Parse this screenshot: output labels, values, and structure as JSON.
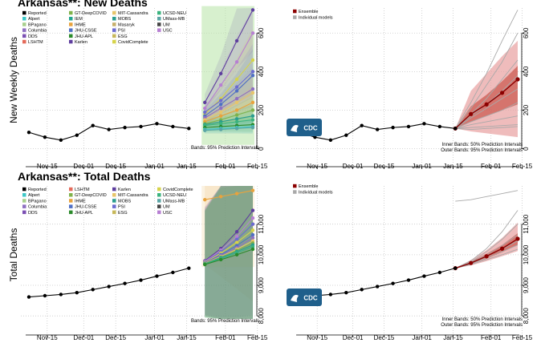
{
  "colors": {
    "reported": "#000000",
    "ensemble": "#8b0000",
    "ensemble_band_inner": "#c0392b",
    "ensemble_band_outer": "#e8a0a0",
    "individual": "#a9a9a9",
    "forecast_bg_left_top": "#b6e3a6",
    "forecast_bg_left_bottom": "#f7e7c9",
    "cdc_logo": "#1f5f8b"
  },
  "x_ticks": [
    "Nov-15",
    "Dec-01",
    "Dec-15",
    "Jan-01",
    "Jan-15",
    "Feb-01",
    "Feb-15"
  ],
  "model_legend": [
    {
      "name": "Reported",
      "color": "#000000"
    },
    {
      "name": "Alpert",
      "color": "#3ec7c7"
    },
    {
      "name": "BPagano",
      "color": "#a8d08d"
    },
    {
      "name": "Columbia",
      "color": "#8e6fc2"
    },
    {
      "name": "DDS",
      "color": "#7b4fb3"
    },
    {
      "name": "LSHTM",
      "color": "#e46a5a"
    },
    {
      "name": "GT-DeepCOVID",
      "color": "#7fb24a"
    },
    {
      "name": "IEM",
      "color": "#20a48e"
    },
    {
      "name": "IHME",
      "color": "#e8a33d"
    },
    {
      "name": "JHU-CSSE",
      "color": "#4f6fc4"
    },
    {
      "name": "JHU-APL",
      "color": "#2a8a2a"
    },
    {
      "name": "Karlen",
      "color": "#5e3e9e"
    },
    {
      "name": "MIT-Cassandra",
      "color": "#e7c56a"
    },
    {
      "name": "MOBS",
      "color": "#2a9d8f"
    },
    {
      "name": "Masaryk",
      "color": "#c6b06a"
    },
    {
      "name": "PSI",
      "color": "#6b6bd1"
    },
    {
      "name": "ESG",
      "color": "#c7b85a"
    },
    {
      "name": "CovidComplete",
      "color": "#d6d34a"
    },
    {
      "name": "UCSD-NEU",
      "color": "#3ab37e"
    },
    {
      "name": "UMass-MB",
      "color": "#5aa5a5"
    },
    {
      "name": "UM",
      "color": "#444444"
    },
    {
      "name": "USC",
      "color": "#b77fd3"
    }
  ],
  "model_legend_bottom": [
    {
      "name": "Reported",
      "color": "#000000"
    },
    {
      "name": "Alpert",
      "color": "#3ec7c7"
    },
    {
      "name": "BPagano",
      "color": "#a8d08d"
    },
    {
      "name": "Columbia",
      "color": "#8e6fc2"
    },
    {
      "name": "DDS",
      "color": "#7b4fb3"
    },
    {
      "name": "LSHTM",
      "color": "#e46a5a"
    },
    {
      "name": "GT-DeepCOVID",
      "color": "#7fb24a"
    },
    {
      "name": "IHME",
      "color": "#e8a33d"
    },
    {
      "name": "JHU-CSSE",
      "color": "#4f6fc4"
    },
    {
      "name": "JHU-APL",
      "color": "#2a8a2a"
    },
    {
      "name": "Karlen",
      "color": "#5e3e9e"
    },
    {
      "name": "MIT-Cassandra",
      "color": "#e7c56a"
    },
    {
      "name": "MOBS",
      "color": "#2a9d8f"
    },
    {
      "name": "PSI",
      "color": "#6b6bd1"
    },
    {
      "name": "ESG",
      "color": "#c7b85a"
    },
    {
      "name": "CovidComplete",
      "color": "#d6d34a"
    },
    {
      "name": "UCSD-NEU",
      "color": "#3ab37e"
    },
    {
      "name": "UMass-MB",
      "color": "#5aa5a5"
    },
    {
      "name": "UM",
      "color": "#444444"
    },
    {
      "name": "USC",
      "color": "#b77fd3"
    }
  ],
  "ensemble_legend": [
    {
      "name": "Ensemble",
      "color": "#8b0000"
    },
    {
      "name": "Individual models",
      "color": "#a9a9a9"
    }
  ],
  "notes": {
    "bands_left": "Bands: 95% Prediction Intervals",
    "inner_bands": "Inner Bands: 50% Prediction Intervals",
    "outer_bands": "Outer Bands: 95% Prediction Intervals",
    "cdc_label": "CDC"
  },
  "chart_data": [
    {
      "id": "new-deaths-models",
      "type": "line",
      "title": "Arkansas**: New Deaths",
      "ylabel": "New Weekly Deaths",
      "ylim": [
        -10,
        730
      ],
      "yticks": [
        0,
        200,
        400,
        600
      ],
      "x_reported": [
        "Nov-07",
        "Nov-14",
        "Nov-21",
        "Nov-28",
        "Dec-05",
        "Dec-12",
        "Dec-19",
        "Dec-26",
        "Jan-02",
        "Jan-09",
        "Jan-16"
      ],
      "reported": [
        85,
        60,
        45,
        70,
        120,
        100,
        110,
        115,
        130,
        115,
        105
      ],
      "x_forecast": [
        "Jan-23",
        "Jan-30",
        "Feb-06",
        "Feb-13"
      ],
      "series": [
        {
          "name": "Karlen",
          "values": [
            240,
            390,
            560,
            720
          ]
        },
        {
          "name": "USC",
          "values": [
            210,
            330,
            450,
            600
          ]
        },
        {
          "name": "CovidComplete",
          "values": [
            180,
            260,
            360,
            460
          ]
        },
        {
          "name": "PSI",
          "values": [
            190,
            250,
            320,
            400
          ]
        },
        {
          "name": "JHU-CSSE",
          "values": [
            170,
            230,
            300,
            380
          ]
        },
        {
          "name": "Columbia",
          "values": [
            160,
            210,
            260,
            310
          ]
        },
        {
          "name": "MIT-Cassandra",
          "values": [
            150,
            190,
            240,
            290
          ]
        },
        {
          "name": "IHME",
          "values": [
            140,
            170,
            200,
            240
          ]
        },
        {
          "name": "GT-DeepCOVID",
          "values": [
            130,
            150,
            175,
            200
          ]
        },
        {
          "name": "MOBS",
          "values": [
            125,
            140,
            155,
            170
          ]
        },
        {
          "name": "UCSD-NEU",
          "values": [
            120,
            130,
            140,
            150
          ]
        },
        {
          "name": "JHU-APL",
          "values": [
            110,
            115,
            120,
            125
          ]
        },
        {
          "name": "Alpert",
          "values": [
            100,
            105,
            110,
            115
          ]
        },
        {
          "name": "UMass-MB",
          "values": [
            95,
            100,
            105,
            110
          ]
        }
      ],
      "band_95": {
        "low": [
          20,
          20,
          25,
          30
        ],
        "high": [
          320,
          700,
          740,
          740
        ]
      }
    },
    {
      "id": "new-deaths-ensemble",
      "type": "line",
      "ylim": [
        -10,
        730
      ],
      "yticks": [
        0,
        200,
        400,
        600
      ],
      "x_reported": [
        "Nov-07",
        "Nov-14",
        "Nov-21",
        "Nov-28",
        "Dec-05",
        "Dec-12",
        "Dec-19",
        "Dec-26",
        "Jan-02",
        "Jan-09",
        "Jan-16"
      ],
      "reported": [
        85,
        60,
        45,
        70,
        120,
        100,
        110,
        115,
        130,
        115,
        105
      ],
      "x_forecast": [
        "Jan-16",
        "Jan-23",
        "Jan-30",
        "Feb-06",
        "Feb-13"
      ],
      "ensemble": [
        105,
        180,
        230,
        290,
        360
      ],
      "ensemble_inner": {
        "low": [
          105,
          140,
          170,
          200,
          230
        ],
        "high": [
          105,
          220,
          280,
          350,
          430
        ]
      },
      "ensemble_outer": {
        "low": [
          105,
          90,
          80,
          70,
          60
        ],
        "high": [
          105,
          300,
          390,
          480,
          560
        ]
      },
      "individual": [
        [
          105,
          240,
          390,
          560,
          720
        ],
        [
          105,
          210,
          330,
          450,
          600
        ],
        [
          105,
          180,
          260,
          360,
          460
        ],
        [
          105,
          170,
          230,
          300,
          380
        ],
        [
          105,
          160,
          210,
          260,
          310
        ],
        [
          105,
          140,
          170,
          200,
          240
        ],
        [
          105,
          125,
          140,
          155,
          170
        ],
        [
          105,
          110,
          115,
          120,
          125
        ],
        [
          105,
          100,
          105,
          110,
          115
        ]
      ]
    },
    {
      "id": "total-deaths-models",
      "type": "line",
      "title": "Arkansas**: Total Deaths",
      "ylabel": "Total Deaths",
      "ylim": [
        7900,
        12250
      ],
      "yticks": [
        8000,
        9000,
        10000,
        11000
      ],
      "x_reported": [
        "Nov-07",
        "Nov-14",
        "Nov-21",
        "Nov-28",
        "Dec-05",
        "Dec-12",
        "Dec-19",
        "Dec-26",
        "Jan-02",
        "Jan-09",
        "Jan-16"
      ],
      "reported": [
        8620,
        8660,
        8700,
        8760,
        8860,
        8960,
        9060,
        9170,
        9300,
        9420,
        9560
      ],
      "x_forecast": [
        "Jan-23",
        "Jan-30",
        "Feb-06",
        "Feb-13"
      ],
      "series": [
        {
          "name": "IHME",
          "values": [
            11800,
            11900,
            12000,
            12100
          ]
        },
        {
          "name": "Karlen",
          "values": [
            9800,
            10200,
            10750,
            11450
          ]
        },
        {
          "name": "USC",
          "values": [
            9780,
            10150,
            10600,
            11200
          ]
        },
        {
          "name": "PSI",
          "values": [
            9760,
            10100,
            10500,
            11000
          ]
        },
        {
          "name": "CovidComplete",
          "values": [
            9750,
            10050,
            10400,
            10800
          ]
        },
        {
          "name": "JHU-CSSE",
          "values": [
            9740,
            10000,
            10300,
            10650
          ]
        },
        {
          "name": "Columbia",
          "values": [
            9730,
            9970,
            10230,
            10550
          ]
        },
        {
          "name": "MIT-Cassandra",
          "values": [
            9720,
            9940,
            10180,
            10450
          ]
        },
        {
          "name": "GT-DeepCOVID",
          "values": [
            9710,
            9920,
            10140,
            10380
          ]
        },
        {
          "name": "MOBS",
          "values": [
            9700,
            9900,
            10100,
            10320
          ]
        },
        {
          "name": "UCSD-NEU",
          "values": [
            9690,
            9870,
            10060,
            10260
          ]
        },
        {
          "name": "JHU-APL",
          "values": [
            9680,
            9840,
            10000,
            10180
          ]
        }
      ],
      "band_95": {
        "low": [
          9600,
          9700,
          9750,
          9800
        ],
        "high": [
          12000,
          12150,
          12250,
          12250
        ]
      }
    },
    {
      "id": "total-deaths-ensemble",
      "type": "line",
      "ylim": [
        7900,
        12250
      ],
      "yticks": [
        8000,
        9000,
        10000,
        11000
      ],
      "x_reported": [
        "Nov-07",
        "Nov-14",
        "Nov-21",
        "Nov-28",
        "Dec-05",
        "Dec-12",
        "Dec-19",
        "Dec-26",
        "Jan-02",
        "Jan-09",
        "Jan-16"
      ],
      "reported": [
        8620,
        8660,
        8700,
        8760,
        8860,
        8960,
        9060,
        9170,
        9300,
        9420,
        9560
      ],
      "x_forecast": [
        "Jan-16",
        "Jan-23",
        "Jan-30",
        "Feb-06",
        "Feb-13"
      ],
      "ensemble": [
        9560,
        9730,
        9950,
        10200,
        10520
      ],
      "ensemble_inner": {
        "low": [
          9560,
          9700,
          9870,
          10080,
          10320
        ],
        "high": [
          9560,
          9770,
          10030,
          10320,
          10700
        ]
      },
      "ensemble_outer": {
        "low": [
          9560,
          9650,
          9790,
          9950,
          10120
        ],
        "high": [
          9560,
          9830,
          10150,
          10550,
          11050
        ]
      },
      "individual": [
        [
          11750,
          11800,
          11900,
          12000,
          12100
        ],
        [
          9560,
          9800,
          10200,
          10750,
          11450
        ],
        [
          9560,
          9760,
          10100,
          10500,
          11000
        ],
        [
          9560,
          9740,
          10000,
          10300,
          10650
        ],
        [
          9560,
          9720,
          9940,
          10180,
          10450
        ],
        [
          9560,
          9700,
          9900,
          10100,
          10320
        ],
        [
          9560,
          9680,
          9840,
          10000,
          10180
        ]
      ]
    }
  ]
}
